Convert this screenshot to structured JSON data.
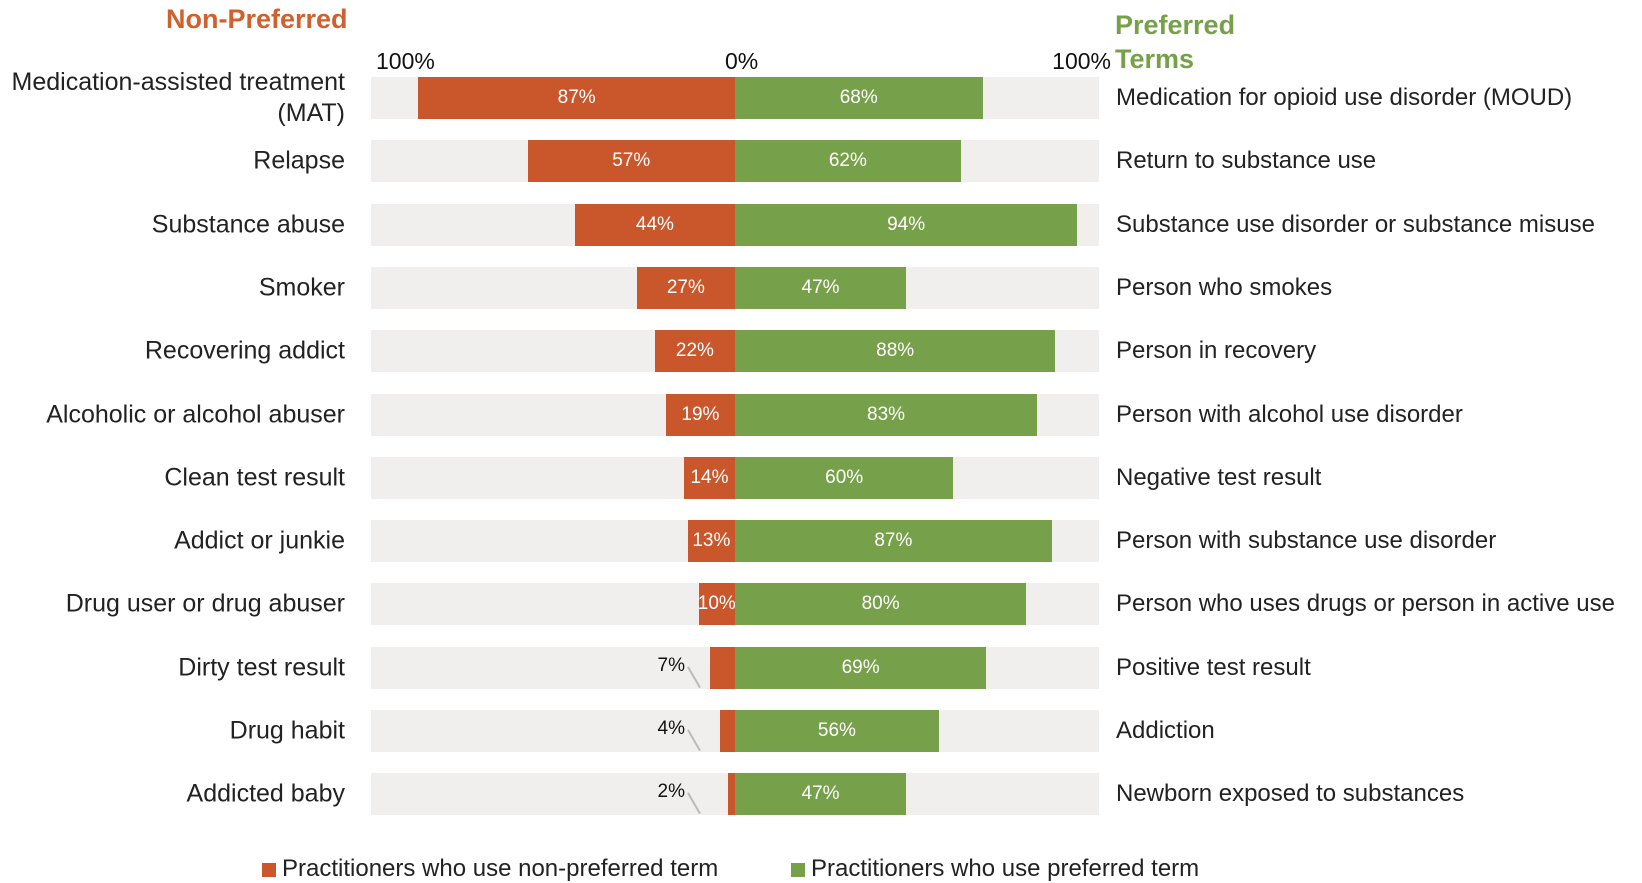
{
  "chart_data": {
    "type": "diverging_bar",
    "left_title": "Non-Preferred",
    "right_title": "Preferred Terms",
    "categories": [
      "Medication-assisted treatment (MAT)",
      "Relapse",
      "Substance abuse",
      "Smoker",
      "Recovering addict",
      "Alcoholic or alcohol abuser",
      "Clean test result",
      "Addict or junkie",
      "Drug user or drug abuser",
      "Dirty test result",
      "Drug habit",
      "Addicted baby"
    ],
    "preferred_terms": [
      "Medication for opioid use disorder (MOUD)",
      "Return to substance use",
      "Substance use disorder or substance misuse",
      "Person who smokes",
      "Person in recovery",
      "Person with alcohol use disorder",
      "Negative test result",
      "Person with substance use disorder",
      "Person who uses drugs or person in active use",
      "Positive test result",
      "Addiction",
      "Newborn exposed to substances"
    ],
    "series": [
      {
        "name": "Practitioners who use non-preferred term",
        "color": "#c9572b",
        "side": "left",
        "values": [
          87,
          57,
          44,
          27,
          22,
          19,
          14,
          13,
          10,
          7,
          4,
          2
        ],
        "value_labels": [
          "87%",
          "57%",
          "44%",
          "27%",
          "22%",
          "19%",
          "14%",
          "13%",
          "10%",
          "7%",
          "4%",
          "2%"
        ]
      },
      {
        "name": "Practitioners who use preferred term",
        "color": "#77a04a",
        "side": "right",
        "values": [
          68,
          62,
          94,
          47,
          88,
          83,
          60,
          87,
          80,
          69,
          56,
          47
        ],
        "value_labels": [
          "68%",
          "62%",
          "94%",
          "47%",
          "88%",
          "83%",
          "60%",
          "87%",
          "80%",
          "69%",
          "56%",
          "47%"
        ]
      }
    ],
    "xlim": [
      -100,
      100
    ],
    "xticks": [
      {
        "value": -100,
        "label": "100%"
      },
      {
        "value": 0,
        "label": "0%"
      },
      {
        "value": 100,
        "label": "100%"
      }
    ],
    "background_bar_color": "#f0efee"
  }
}
